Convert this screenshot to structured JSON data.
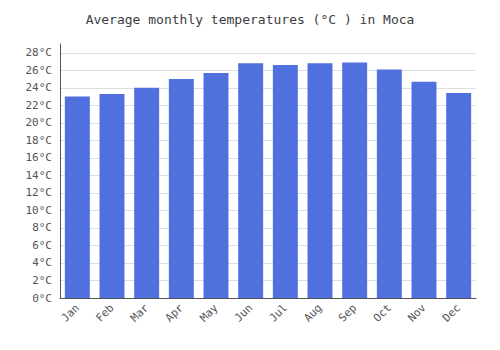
{
  "chart_data": {
    "type": "bar",
    "title": "Average monthly temperatures (°C ) in Moca",
    "categories": [
      "Jan",
      "Feb",
      "Mar",
      "Apr",
      "May",
      "Jun",
      "Jul",
      "Aug",
      "Sep",
      "Oct",
      "Nov",
      "Dec"
    ],
    "values": [
      23.0,
      23.3,
      24.0,
      25.0,
      25.7,
      26.8,
      26.6,
      26.8,
      26.9,
      26.1,
      24.7,
      23.4
    ],
    "ylim": [
      0,
      29
    ],
    "yticks": [
      {
        "value": 0,
        "label": "0°C"
      },
      {
        "value": 2,
        "label": "2°C"
      },
      {
        "value": 4,
        "label": "4°C"
      },
      {
        "value": 6,
        "label": "6°C"
      },
      {
        "value": 8,
        "label": "8°C"
      },
      {
        "value": 10,
        "label": "10°C"
      },
      {
        "value": 12,
        "label": "12°C"
      },
      {
        "value": 14,
        "label": "14°C"
      },
      {
        "value": 16,
        "label": "16°C"
      },
      {
        "value": 18,
        "label": "18°C"
      },
      {
        "value": 20,
        "label": "20°C"
      },
      {
        "value": 22,
        "label": "22°C"
      },
      {
        "value": 24,
        "label": "24°C"
      },
      {
        "value": 26,
        "label": "26°C"
      },
      {
        "value": 28,
        "label": "28°C"
      }
    ],
    "grid": true
  }
}
